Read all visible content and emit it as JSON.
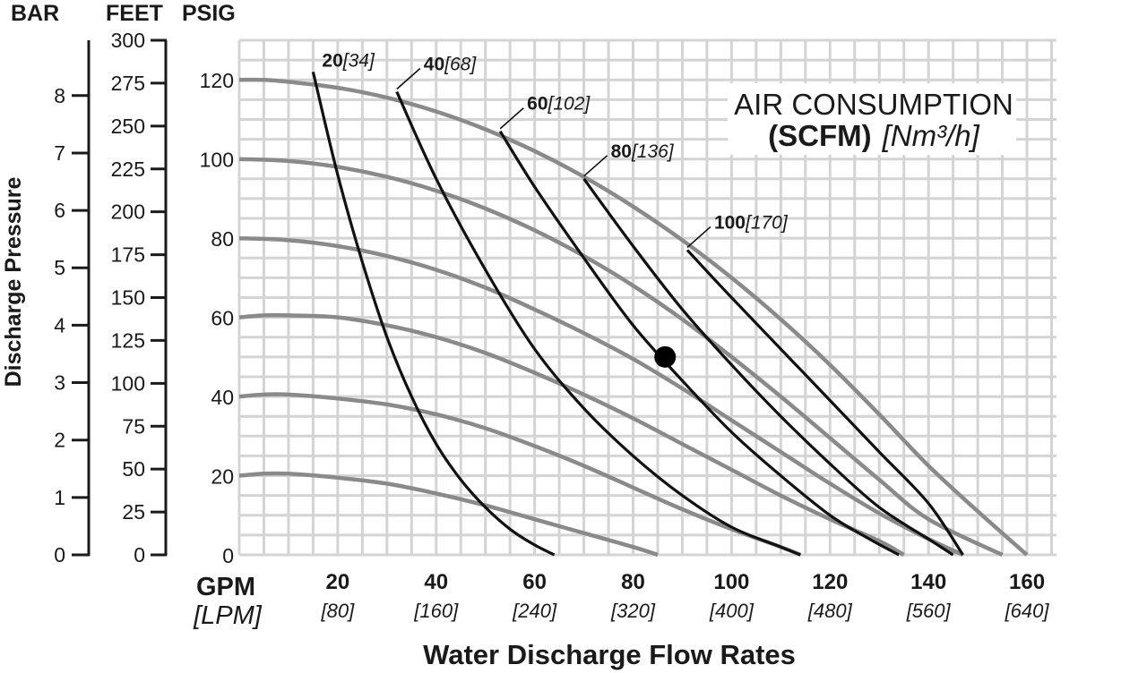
{
  "chart_data": {
    "type": "line",
    "headers": {
      "bar": "BAR",
      "feet": "FEET",
      "psig": "PSIG"
    },
    "y_axis_title": "Discharge Pressure",
    "x_axis_title": "Water Discharge Flow Rates",
    "x_unit_primary": "GPM",
    "x_unit_secondary": "[LPM]",
    "x_ticks": [
      {
        "gpm": "20",
        "lpm": "[80]"
      },
      {
        "gpm": "40",
        "lpm": "[160]"
      },
      {
        "gpm": "60",
        "lpm": "[240]"
      },
      {
        "gpm": "80",
        "lpm": "[320]"
      },
      {
        "gpm": "100",
        "lpm": "[400]"
      },
      {
        "gpm": "120",
        "lpm": "[480]"
      },
      {
        "gpm": "140",
        "lpm": "[560]"
      },
      {
        "gpm": "160",
        "lpm": "[640]"
      }
    ],
    "xlim": [
      0,
      166
    ],
    "ylim_psig": [
      0,
      130
    ],
    "psig_ticks": [
      "0",
      "20",
      "40",
      "60",
      "80",
      "100",
      "120"
    ],
    "feet_ticks": [
      "0",
      "25",
      "50",
      "75",
      "100",
      "125",
      "150",
      "175",
      "200",
      "225",
      "250",
      "275",
      "300"
    ],
    "bar_ticks": [
      "0",
      "1",
      "2",
      "3",
      "4",
      "5",
      "6",
      "7",
      "8"
    ],
    "grid": true,
    "legend_title_line1": "AIR CONSUMPTION",
    "legend_title_bold": "(SCFM)",
    "legend_title_italic": "[Nm³/h]",
    "pressure_curves": [
      {
        "x": [
          0,
          5,
          10,
          20,
          30,
          40,
          50,
          60,
          70,
          80,
          90,
          100,
          110,
          120,
          130,
          140,
          150,
          160
        ],
        "y": [
          120,
          120,
          119.5,
          118,
          115.5,
          112,
          107.5,
          102,
          95.5,
          88,
          79.5,
          70,
          59.5,
          48,
          35.5,
          22.5,
          11,
          0
        ]
      },
      {
        "x": [
          0,
          10,
          20,
          30,
          40,
          50,
          60,
          70,
          80,
          90,
          100,
          110,
          120,
          130,
          140,
          155
        ],
        "y": [
          100,
          99.5,
          98,
          95.5,
          92,
          87.5,
          82,
          75.5,
          68,
          59.5,
          50,
          40,
          29.5,
          19,
          9,
          0
        ]
      },
      {
        "x": [
          0,
          10,
          20,
          30,
          40,
          50,
          60,
          70,
          80,
          90,
          100,
          110,
          120,
          130,
          140,
          147
        ],
        "y": [
          80,
          79.5,
          78,
          75.5,
          72,
          67.5,
          62,
          56,
          49.5,
          42,
          34,
          26,
          18,
          10.5,
          4,
          0
        ]
      },
      {
        "x": [
          0,
          5,
          10,
          20,
          30,
          40,
          50,
          60,
          70,
          80,
          90,
          100,
          110,
          120,
          130,
          135
        ],
        "y": [
          60,
          60.5,
          60.5,
          60,
          58,
          55,
          51,
          46,
          40.5,
          34.5,
          28,
          21.5,
          15,
          9,
          3.5,
          0
        ]
      },
      {
        "x": [
          0,
          5,
          10,
          20,
          30,
          40,
          50,
          60,
          70,
          80,
          90,
          100,
          110,
          114
        ],
        "y": [
          40,
          40.5,
          40.5,
          39.5,
          38,
          35.5,
          32,
          27.5,
          22.5,
          17,
          11.5,
          6.5,
          2,
          0
        ]
      },
      {
        "x": [
          0,
          5,
          10,
          20,
          30,
          40,
          50,
          60,
          70,
          80,
          85
        ],
        "y": [
          20,
          20.5,
          20.5,
          19.5,
          18,
          15.5,
          12.5,
          9,
          5.5,
          2,
          0
        ]
      }
    ],
    "air_curves": [
      {
        "label_bold": "20",
        "label_italic": "[34]",
        "x": [
          15,
          20,
          25,
          30,
          35,
          40,
          45,
          50,
          55,
          60,
          64
        ],
        "y": [
          122,
          96,
          74,
          55,
          40,
          28,
          19,
          12,
          6.5,
          2.5,
          0
        ]
      },
      {
        "label_bold": "40",
        "label_italic": "[68]",
        "x": [
          32,
          40,
          50,
          60,
          70,
          80,
          90,
          100,
          110,
          114
        ],
        "y": [
          117,
          95,
          72,
          52,
          37,
          25,
          15,
          7,
          2,
          0
        ]
      },
      {
        "label_bold": "60",
        "label_italic": "[102]",
        "x": [
          53,
          60,
          70,
          80,
          90,
          100,
          110,
          120,
          128,
          134
        ],
        "y": [
          107,
          93,
          75,
          58,
          44,
          31,
          20,
          10,
          4,
          0
        ]
      },
      {
        "label_bold": "80",
        "label_italic": "[136]",
        "x": [
          70,
          80,
          90,
          100,
          110,
          120,
          130,
          140,
          145
        ],
        "y": [
          95,
          78,
          62,
          48,
          35,
          23,
          12,
          4,
          0
        ]
      },
      {
        "label_bold": "100",
        "label_italic": "[170]",
        "x": [
          91,
          100,
          110,
          120,
          130,
          140,
          147
        ],
        "y": [
          77,
          65,
          52,
          39,
          26,
          13,
          0
        ]
      }
    ],
    "marker_point": {
      "x": 86.5,
      "y": 50
    }
  }
}
